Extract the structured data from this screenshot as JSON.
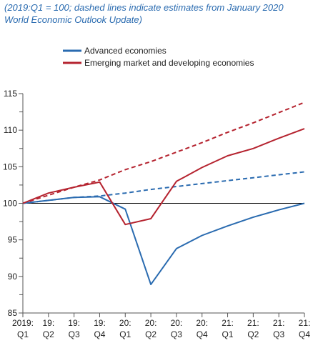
{
  "subtitle_line1": "(2019:Q1 = 100; dashed lines indicate estimates from January 2020",
  "subtitle_line2": "World Economic Outlook Update)",
  "colors": {
    "advanced": "#2a6bb0",
    "emerging": "#b5232f",
    "baseline": "#000000",
    "axis": "#555555"
  },
  "chart_data": {
    "type": "line",
    "x": [
      "2019:Q1",
      "19:Q2",
      "19:Q3",
      "19:Q4",
      "20:Q1",
      "20:Q2",
      "20:Q3",
      "20:Q4",
      "21:Q1",
      "21:Q2",
      "21:Q3",
      "21:Q4"
    ],
    "x_tick_labels": [
      [
        "2019:",
        "Q1"
      ],
      [
        "19:",
        "Q2"
      ],
      [
        "19:",
        "Q3"
      ],
      [
        "19:",
        "Q4"
      ],
      [
        "20:",
        "Q1"
      ],
      [
        "20:",
        "Q2"
      ],
      [
        "20:",
        "Q3"
      ],
      [
        "20:",
        "Q4"
      ],
      [
        "21:",
        "Q1"
      ],
      [
        "21:",
        "Q2"
      ],
      [
        "21:",
        "Q3"
      ],
      [
        "21:",
        "Q4"
      ]
    ],
    "ylim": [
      85,
      115
    ],
    "y_ticks": [
      85,
      90,
      95,
      100,
      105,
      110,
      115
    ],
    "baseline": 100,
    "legend_position": "top",
    "series": [
      {
        "name": "Advanced economies",
        "key": "advanced",
        "style": "solid",
        "values": [
          100,
          100.4,
          100.8,
          100.9,
          99.2,
          88.9,
          93.8,
          95.6,
          96.9,
          98.1,
          99.1,
          100.0
        ]
      },
      {
        "name": "Emerging market and developing economies",
        "key": "emerging",
        "style": "solid",
        "values": [
          100,
          101.4,
          102.2,
          102.9,
          97.1,
          97.9,
          103.0,
          104.9,
          106.5,
          107.5,
          108.9,
          110.2
        ]
      },
      {
        "name": "",
        "key": "advanced",
        "style": "dashed",
        "values": [
          100,
          100.4,
          100.8,
          101.0,
          101.4,
          101.9,
          102.3,
          102.7,
          103.1,
          103.5,
          103.9,
          104.3
        ]
      },
      {
        "name": "",
        "key": "emerging",
        "style": "dashed",
        "values": [
          100,
          101.1,
          102.2,
          103.2,
          104.6,
          105.7,
          107.0,
          108.3,
          109.7,
          111.0,
          112.4,
          113.8
        ]
      }
    ]
  }
}
